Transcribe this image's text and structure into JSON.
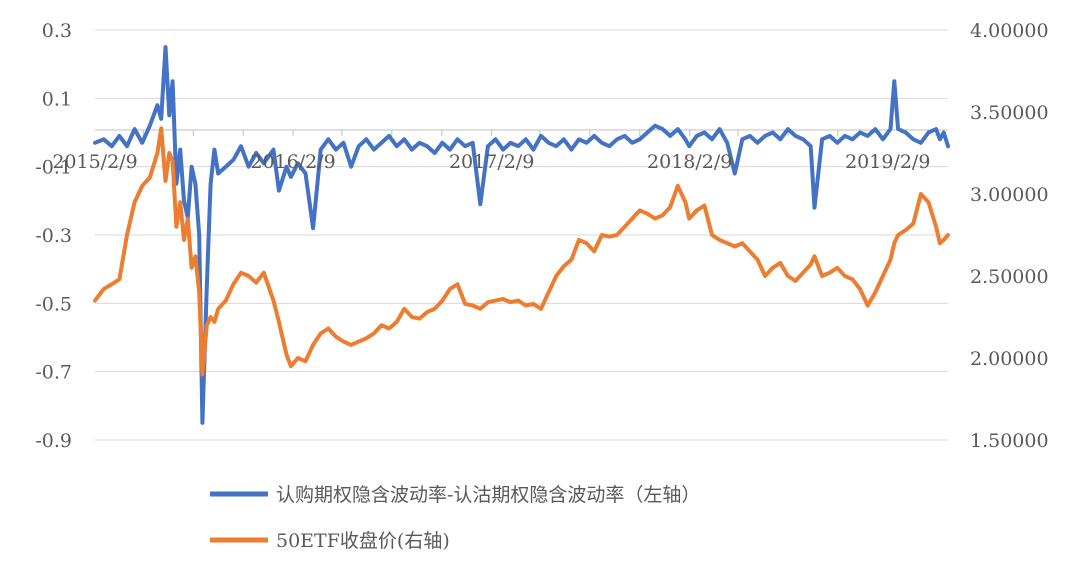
{
  "chart_data": {
    "type": "line",
    "title": "",
    "x_ticks": [
      "2015/2/9",
      "2016/2/9",
      "2017/2/9",
      "2018/2/9",
      "2019/2/9"
    ],
    "x_range": [
      "2015-02-09",
      "2019-05-31"
    ],
    "y_left": {
      "ticks": [
        "0.3",
        "0.1",
        "-0.1",
        "-0.3",
        "-0.5",
        "-0.7",
        "-0.9"
      ],
      "range": [
        -0.9,
        0.3
      ]
    },
    "y_right": {
      "ticks": [
        "4.00000",
        "3.50000",
        "3.00000",
        "2.50000",
        "2.00000",
        "1.50000"
      ],
      "range": [
        1.5,
        4.0
      ]
    },
    "grid": "horizontal",
    "legend_position": "bottom",
    "series": [
      {
        "name": "认购期权隐含波动率-认沽期权隐含波动率（左轴）",
        "axis": "left",
        "color": "#4472C4",
        "points": [
          [
            "2015-02-09",
            -0.03
          ],
          [
            "2015-02-25",
            -0.02
          ],
          [
            "2015-03-12",
            -0.04
          ],
          [
            "2015-03-26",
            -0.01
          ],
          [
            "2015-04-09",
            -0.04
          ],
          [
            "2015-04-23",
            0.01
          ],
          [
            "2015-05-07",
            -0.03
          ],
          [
            "2015-05-21",
            0.02
          ],
          [
            "2015-06-04",
            0.08
          ],
          [
            "2015-06-11",
            0.04
          ],
          [
            "2015-06-19",
            0.25
          ],
          [
            "2015-06-26",
            0.05
          ],
          [
            "2015-07-02",
            0.15
          ],
          [
            "2015-07-09",
            -0.15
          ],
          [
            "2015-07-16",
            -0.05
          ],
          [
            "2015-07-23",
            -0.2
          ],
          [
            "2015-07-30",
            -0.25
          ],
          [
            "2015-08-06",
            -0.1
          ],
          [
            "2015-08-13",
            -0.15
          ],
          [
            "2015-08-20",
            -0.3
          ],
          [
            "2015-08-26",
            -0.85
          ],
          [
            "2015-09-03",
            -0.45
          ],
          [
            "2015-09-10",
            -0.15
          ],
          [
            "2015-09-17",
            -0.05
          ],
          [
            "2015-09-24",
            -0.12
          ],
          [
            "2015-10-08",
            -0.1
          ],
          [
            "2015-10-22",
            -0.08
          ],
          [
            "2015-11-05",
            -0.04
          ],
          [
            "2015-11-19",
            -0.1
          ],
          [
            "2015-12-03",
            -0.06
          ],
          [
            "2015-12-17",
            -0.09
          ],
          [
            "2016-01-04",
            -0.05
          ],
          [
            "2016-01-14",
            -0.17
          ],
          [
            "2016-01-28",
            -0.1
          ],
          [
            "2016-02-05",
            -0.13
          ],
          [
            "2016-02-18",
            -0.09
          ],
          [
            "2016-03-03",
            -0.12
          ],
          [
            "2016-03-17",
            -0.28
          ],
          [
            "2016-03-31",
            -0.05
          ],
          [
            "2016-04-14",
            -0.02
          ],
          [
            "2016-04-28",
            -0.05
          ],
          [
            "2016-05-12",
            -0.03
          ],
          [
            "2016-05-26",
            -0.1
          ],
          [
            "2016-06-09",
            -0.04
          ],
          [
            "2016-06-23",
            -0.02
          ],
          [
            "2016-07-07",
            -0.05
          ],
          [
            "2016-07-21",
            -0.03
          ],
          [
            "2016-08-04",
            -0.01
          ],
          [
            "2016-08-18",
            -0.04
          ],
          [
            "2016-09-01",
            -0.02
          ],
          [
            "2016-09-15",
            -0.05
          ],
          [
            "2016-09-29",
            -0.03
          ],
          [
            "2016-10-13",
            -0.04
          ],
          [
            "2016-10-27",
            -0.06
          ],
          [
            "2016-11-10",
            -0.03
          ],
          [
            "2016-11-24",
            -0.05
          ],
          [
            "2016-12-08",
            -0.02
          ],
          [
            "2016-12-22",
            -0.04
          ],
          [
            "2017-01-05",
            -0.03
          ],
          [
            "2017-01-19",
            -0.21
          ],
          [
            "2017-02-02",
            -0.04
          ],
          [
            "2017-02-16",
            -0.02
          ],
          [
            "2017-03-02",
            -0.05
          ],
          [
            "2017-03-16",
            -0.03
          ],
          [
            "2017-03-30",
            -0.04
          ],
          [
            "2017-04-13",
            -0.02
          ],
          [
            "2017-04-27",
            -0.05
          ],
          [
            "2017-05-11",
            -0.01
          ],
          [
            "2017-05-25",
            -0.03
          ],
          [
            "2017-06-08",
            -0.04
          ],
          [
            "2017-06-22",
            -0.02
          ],
          [
            "2017-07-06",
            -0.05
          ],
          [
            "2017-07-20",
            -0.02
          ],
          [
            "2017-08-03",
            -0.03
          ],
          [
            "2017-08-17",
            -0.01
          ],
          [
            "2017-08-31",
            -0.03
          ],
          [
            "2017-09-14",
            -0.04
          ],
          [
            "2017-09-28",
            -0.02
          ],
          [
            "2017-10-12",
            -0.01
          ],
          [
            "2017-10-26",
            -0.03
          ],
          [
            "2017-11-09",
            -0.02
          ],
          [
            "2017-11-23",
            0.0
          ],
          [
            "2017-12-07",
            0.02
          ],
          [
            "2017-12-21",
            0.01
          ],
          [
            "2018-01-04",
            -0.01
          ],
          [
            "2018-01-18",
            0.01
          ],
          [
            "2018-02-01",
            -0.02
          ],
          [
            "2018-02-08",
            -0.04
          ],
          [
            "2018-02-22",
            -0.01
          ],
          [
            "2018-03-08",
            0.0
          ],
          [
            "2018-03-22",
            -0.02
          ],
          [
            "2018-04-05",
            0.01
          ],
          [
            "2018-04-19",
            -0.03
          ],
          [
            "2018-05-03",
            -0.12
          ],
          [
            "2018-05-17",
            -0.02
          ],
          [
            "2018-05-31",
            -0.01
          ],
          [
            "2018-06-14",
            -0.03
          ],
          [
            "2018-06-28",
            -0.01
          ],
          [
            "2018-07-12",
            0.0
          ],
          [
            "2018-07-26",
            -0.02
          ],
          [
            "2018-08-09",
            0.01
          ],
          [
            "2018-08-23",
            -0.01
          ],
          [
            "2018-09-06",
            -0.02
          ],
          [
            "2018-09-20",
            -0.04
          ],
          [
            "2018-09-27",
            -0.22
          ],
          [
            "2018-10-11",
            -0.02
          ],
          [
            "2018-10-25",
            -0.01
          ],
          [
            "2018-11-08",
            -0.03
          ],
          [
            "2018-11-22",
            -0.01
          ],
          [
            "2018-12-06",
            -0.02
          ],
          [
            "2018-12-20",
            0.0
          ],
          [
            "2019-01-03",
            -0.01
          ],
          [
            "2019-01-17",
            0.01
          ],
          [
            "2019-01-31",
            -0.02
          ],
          [
            "2019-02-14",
            0.01
          ],
          [
            "2019-02-21",
            0.15
          ],
          [
            "2019-02-28",
            0.01
          ],
          [
            "2019-03-14",
            0.0
          ],
          [
            "2019-03-28",
            -0.02
          ],
          [
            "2019-04-11",
            -0.03
          ],
          [
            "2019-04-25",
            0.0
          ],
          [
            "2019-05-09",
            0.01
          ],
          [
            "2019-05-16",
            -0.02
          ],
          [
            "2019-05-23",
            0.0
          ],
          [
            "2019-05-31",
            -0.04
          ]
        ]
      },
      {
        "name": "50ETF收盘价(右轴)",
        "axis": "right",
        "color": "#ED7D31",
        "points": [
          [
            "2015-02-09",
            2.35
          ],
          [
            "2015-02-25",
            2.42
          ],
          [
            "2015-03-12",
            2.45
          ],
          [
            "2015-03-26",
            2.48
          ],
          [
            "2015-04-09",
            2.75
          ],
          [
            "2015-04-23",
            2.95
          ],
          [
            "2015-05-07",
            3.05
          ],
          [
            "2015-05-21",
            3.1
          ],
          [
            "2015-06-04",
            3.25
          ],
          [
            "2015-06-11",
            3.4
          ],
          [
            "2015-06-19",
            3.08
          ],
          [
            "2015-06-26",
            3.25
          ],
          [
            "2015-07-02",
            3.2
          ],
          [
            "2015-07-09",
            2.8
          ],
          [
            "2015-07-16",
            2.95
          ],
          [
            "2015-07-23",
            2.72
          ],
          [
            "2015-07-30",
            2.85
          ],
          [
            "2015-08-06",
            2.55
          ],
          [
            "2015-08-13",
            2.62
          ],
          [
            "2015-08-20",
            2.4
          ],
          [
            "2015-08-26",
            1.9
          ],
          [
            "2015-09-03",
            2.2
          ],
          [
            "2015-09-10",
            2.25
          ],
          [
            "2015-09-17",
            2.22
          ],
          [
            "2015-09-24",
            2.3
          ],
          [
            "2015-10-08",
            2.35
          ],
          [
            "2015-10-22",
            2.45
          ],
          [
            "2015-11-05",
            2.52
          ],
          [
            "2015-11-19",
            2.5
          ],
          [
            "2015-12-03",
            2.46
          ],
          [
            "2015-12-17",
            2.52
          ],
          [
            "2016-01-04",
            2.35
          ],
          [
            "2016-01-14",
            2.22
          ],
          [
            "2016-01-28",
            2.02
          ],
          [
            "2016-02-05",
            1.95
          ],
          [
            "2016-02-18",
            2.0
          ],
          [
            "2016-03-03",
            1.98
          ],
          [
            "2016-03-17",
            2.08
          ],
          [
            "2016-03-31",
            2.15
          ],
          [
            "2016-04-14",
            2.18
          ],
          [
            "2016-04-28",
            2.13
          ],
          [
            "2016-05-12",
            2.1
          ],
          [
            "2016-05-26",
            2.08
          ],
          [
            "2016-06-09",
            2.1
          ],
          [
            "2016-06-23",
            2.12
          ],
          [
            "2016-07-07",
            2.15
          ],
          [
            "2016-07-21",
            2.2
          ],
          [
            "2016-08-04",
            2.18
          ],
          [
            "2016-08-18",
            2.22
          ],
          [
            "2016-09-01",
            2.3
          ],
          [
            "2016-09-15",
            2.25
          ],
          [
            "2016-09-29",
            2.24
          ],
          [
            "2016-10-13",
            2.28
          ],
          [
            "2016-10-27",
            2.3
          ],
          [
            "2016-11-10",
            2.35
          ],
          [
            "2016-11-24",
            2.42
          ],
          [
            "2016-12-08",
            2.45
          ],
          [
            "2016-12-22",
            2.33
          ],
          [
            "2017-01-05",
            2.32
          ],
          [
            "2017-01-19",
            2.3
          ],
          [
            "2017-02-02",
            2.34
          ],
          [
            "2017-02-16",
            2.35
          ],
          [
            "2017-03-02",
            2.36
          ],
          [
            "2017-03-16",
            2.34
          ],
          [
            "2017-03-30",
            2.35
          ],
          [
            "2017-04-13",
            2.32
          ],
          [
            "2017-04-27",
            2.33
          ],
          [
            "2017-05-11",
            2.3
          ],
          [
            "2017-05-25",
            2.4
          ],
          [
            "2017-06-08",
            2.5
          ],
          [
            "2017-06-22",
            2.56
          ],
          [
            "2017-07-06",
            2.6
          ],
          [
            "2017-07-20",
            2.72
          ],
          [
            "2017-08-03",
            2.7
          ],
          [
            "2017-08-17",
            2.65
          ],
          [
            "2017-08-31",
            2.75
          ],
          [
            "2017-09-14",
            2.74
          ],
          [
            "2017-09-28",
            2.75
          ],
          [
            "2017-10-12",
            2.8
          ],
          [
            "2017-10-26",
            2.85
          ],
          [
            "2017-11-09",
            2.9
          ],
          [
            "2017-11-23",
            2.88
          ],
          [
            "2017-12-07",
            2.85
          ],
          [
            "2017-12-21",
            2.87
          ],
          [
            "2018-01-04",
            2.92
          ],
          [
            "2018-01-18",
            3.05
          ],
          [
            "2018-02-01",
            2.95
          ],
          [
            "2018-02-08",
            2.85
          ],
          [
            "2018-02-22",
            2.9
          ],
          [
            "2018-03-08",
            2.93
          ],
          [
            "2018-03-22",
            2.75
          ],
          [
            "2018-04-05",
            2.72
          ],
          [
            "2018-04-19",
            2.7
          ],
          [
            "2018-05-03",
            2.68
          ],
          [
            "2018-05-17",
            2.7
          ],
          [
            "2018-05-31",
            2.65
          ],
          [
            "2018-06-14",
            2.6
          ],
          [
            "2018-06-28",
            2.5
          ],
          [
            "2018-07-12",
            2.55
          ],
          [
            "2018-07-26",
            2.58
          ],
          [
            "2018-08-09",
            2.5
          ],
          [
            "2018-08-23",
            2.47
          ],
          [
            "2018-09-06",
            2.52
          ],
          [
            "2018-09-20",
            2.57
          ],
          [
            "2018-09-27",
            2.62
          ],
          [
            "2018-10-11",
            2.5
          ],
          [
            "2018-10-25",
            2.52
          ],
          [
            "2018-11-08",
            2.55
          ],
          [
            "2018-11-22",
            2.5
          ],
          [
            "2018-12-06",
            2.48
          ],
          [
            "2018-12-20",
            2.42
          ],
          [
            "2019-01-03",
            2.32
          ],
          [
            "2019-01-17",
            2.4
          ],
          [
            "2019-01-31",
            2.5
          ],
          [
            "2019-02-14",
            2.6
          ],
          [
            "2019-02-21",
            2.7
          ],
          [
            "2019-02-28",
            2.75
          ],
          [
            "2019-03-14",
            2.78
          ],
          [
            "2019-03-28",
            2.82
          ],
          [
            "2019-04-11",
            3.0
          ],
          [
            "2019-04-25",
            2.95
          ],
          [
            "2019-05-09",
            2.8
          ],
          [
            "2019-05-16",
            2.7
          ],
          [
            "2019-05-23",
            2.72
          ],
          [
            "2019-05-31",
            2.75
          ]
        ]
      }
    ]
  }
}
